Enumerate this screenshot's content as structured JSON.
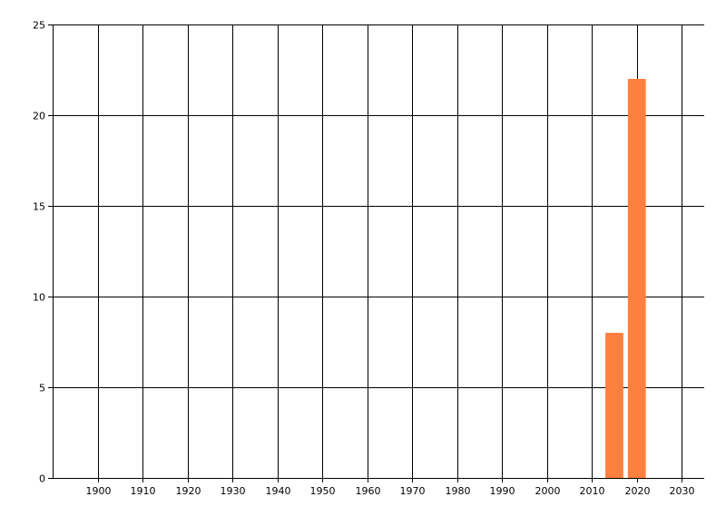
{
  "chart_data": {
    "type": "bar",
    "title": "",
    "xlabel": "",
    "ylabel": "",
    "x": [
      2015,
      2020
    ],
    "values": [
      8,
      22
    ],
    "bar_width_years": 4,
    "xlim": [
      1890,
      2035
    ],
    "ylim": [
      0,
      25
    ],
    "xticks": [
      1900,
      1910,
      1920,
      1930,
      1940,
      1950,
      1960,
      1970,
      1980,
      1990,
      2000,
      2010,
      2020,
      2030
    ],
    "yticks": [
      0,
      5,
      10,
      15,
      20,
      25
    ],
    "grid": true,
    "legend": "none",
    "colors": {
      "bar": "#FF7F3F",
      "grid": "#000000",
      "text": "#000000"
    }
  }
}
